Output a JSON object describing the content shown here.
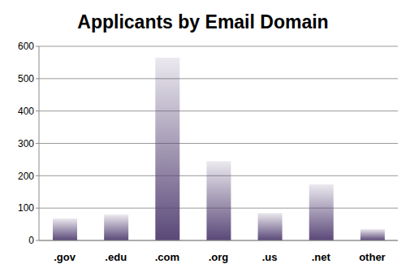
{
  "chart_data": {
    "type": "bar",
    "title": "Applicants by Email Domain",
    "categories": [
      ".gov",
      ".edu",
      ".com",
      ".org",
      ".us",
      ".net",
      "other"
    ],
    "values": [
      68,
      80,
      565,
      245,
      85,
      173,
      35
    ],
    "color": "#5a4878",
    "ylim": [
      0,
      600
    ],
    "yticks": [
      0,
      100,
      200,
      300,
      400,
      500,
      600
    ],
    "grid": true
  }
}
